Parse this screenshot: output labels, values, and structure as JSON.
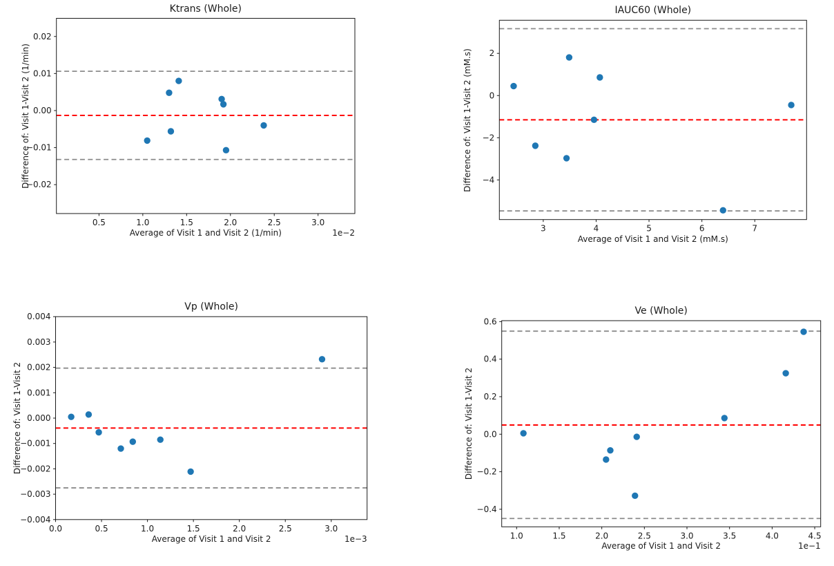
{
  "figure": {
    "background": "#ffffff"
  },
  "chart_data": [
    {
      "id": "ktrans",
      "type": "scatter",
      "title": "Ktrans (Whole)",
      "xlabel": "Average of Visit 1 and Visit 2 (1/min)",
      "ylabel": "Difference of: Visit 1-Visit 2 (1/min)",
      "x_offset_text": "1e−2",
      "x_display_scale": "1e-2",
      "xlim": [
        0.014,
        3.42
      ],
      "ylim": [
        -0.0278,
        0.0249
      ],
      "xticks": [
        0.5,
        1.0,
        1.5,
        2.0,
        2.5,
        3.0
      ],
      "xtick_labels": [
        "0.5",
        "1.0",
        "1.5",
        "2.0",
        "2.5",
        "3.0"
      ],
      "yticks": [
        0.02,
        0.01,
        0.0,
        -0.01,
        -0.02
      ],
      "ytick_labels": [
        "0.02",
        "0.01",
        "0.00",
        "−0.01",
        "−0.02"
      ],
      "points": [
        [
          1.05,
          -0.0081
        ],
        [
          1.3,
          0.0048
        ],
        [
          1.32,
          -0.0056
        ],
        [
          1.41,
          0.008
        ],
        [
          1.9,
          0.0031
        ],
        [
          1.92,
          0.0017
        ],
        [
          1.95,
          -0.0107
        ],
        [
          2.38,
          -0.004
        ]
      ],
      "mean_diff": -0.0013,
      "upper_loa": 0.0106,
      "lower_loa": -0.0132,
      "grid": false,
      "legend": "none",
      "colors": {
        "marker": "#1f77b4",
        "mean_line": "#ff0000",
        "loa_line": "#8c8c8c"
      }
    },
    {
      "id": "iauc60",
      "type": "scatter",
      "title": "IAUC60 (Whole)",
      "xlabel": "Average of Visit 1 and Visit 2 (mM.s)",
      "ylabel": "Difference of: Visit 1-Visit 2 (mM.s)",
      "x_offset_text": "",
      "x_display_scale": "1",
      "xlim": [
        2.17,
        7.98
      ],
      "ylim": [
        -5.88,
        3.57
      ],
      "xticks": [
        3,
        4,
        5,
        6,
        7
      ],
      "xtick_labels": [
        "3",
        "4",
        "5",
        "6",
        "7"
      ],
      "yticks": [
        2,
        0,
        -2,
        -4
      ],
      "ytick_labels": [
        "2",
        "0",
        "−2",
        "−4"
      ],
      "points": [
        [
          2.44,
          0.45
        ],
        [
          2.85,
          -2.38
        ],
        [
          3.49,
          1.81
        ],
        [
          3.44,
          -2.97
        ],
        [
          3.96,
          -1.15
        ],
        [
          4.07,
          0.86
        ],
        [
          6.4,
          -5.44
        ],
        [
          7.69,
          -0.45
        ]
      ],
      "mean_diff": -1.15,
      "upper_loa": 3.17,
      "lower_loa": -5.47,
      "grid": false,
      "legend": "none",
      "colors": {
        "marker": "#1f77b4",
        "mean_line": "#ff0000",
        "loa_line": "#8c8c8c"
      }
    },
    {
      "id": "vp",
      "type": "scatter",
      "title": "Vp (Whole)",
      "xlabel": "Average of Visit 1 and Visit 2",
      "ylabel": "Difference of: Visit 1-Visit 2",
      "x_offset_text": "1e−3",
      "x_display_scale": "1e-3",
      "xlim": [
        0.0,
        3.39
      ],
      "ylim": [
        -0.004,
        0.004
      ],
      "xticks": [
        0.0,
        0.5,
        1.0,
        1.5,
        2.0,
        2.5,
        3.0
      ],
      "xtick_labels": [
        "0.0",
        "0.5",
        "1.0",
        "1.5",
        "2.0",
        "2.5",
        "3.0"
      ],
      "yticks": [
        0.004,
        0.003,
        0.002,
        0.001,
        0.0,
        -0.001,
        -0.002,
        -0.003,
        -0.004
      ],
      "ytick_labels": [
        "0.004",
        "0.003",
        "0.002",
        "0.001",
        "0.000",
        "−0.001",
        "−0.002",
        "−0.003",
        "−0.004"
      ],
      "points": [
        [
          0.17,
          5e-05
        ],
        [
          0.36,
          0.00014
        ],
        [
          0.47,
          -0.00056
        ],
        [
          0.71,
          -0.0012
        ],
        [
          0.84,
          -0.00093
        ],
        [
          1.14,
          -0.00085
        ],
        [
          1.47,
          -0.00211
        ],
        [
          2.9,
          0.00232
        ]
      ],
      "mean_diff": -0.00039,
      "upper_loa": 0.00197,
      "lower_loa": -0.00275,
      "grid": false,
      "legend": "none",
      "colors": {
        "marker": "#1f77b4",
        "mean_line": "#ff0000",
        "loa_line": "#8c8c8c"
      }
    },
    {
      "id": "ve",
      "type": "scatter",
      "title": "Ve (Whole)",
      "xlabel": "Average of Visit 1 and Visit 2",
      "ylabel": "Difference of: Visit 1-Visit 2",
      "x_offset_text": "1e−1",
      "x_display_scale": "1e-1",
      "xlim": [
        0.825,
        4.57
      ],
      "ylim": [
        -0.4935,
        0.605
      ],
      "xticks": [
        1.0,
        1.5,
        2.0,
        2.5,
        3.0,
        3.5,
        4.0,
        4.5
      ],
      "xtick_labels": [
        "1.0",
        "1.5",
        "2.0",
        "2.5",
        "3.0",
        "3.5",
        "4.0",
        "4.5"
      ],
      "yticks": [
        0.6,
        0.4,
        0.2,
        0.0,
        -0.2,
        -0.4
      ],
      "ytick_labels": [
        "0.6",
        "0.4",
        "0.2",
        "0.0",
        "−0.2",
        "−0.4"
      ],
      "points": [
        [
          1.08,
          0.005
        ],
        [
          2.05,
          -0.135
        ],
        [
          2.1,
          -0.086
        ],
        [
          2.41,
          -0.014
        ],
        [
          2.39,
          -0.328
        ],
        [
          3.44,
          0.086
        ],
        [
          4.16,
          0.325
        ],
        [
          4.37,
          0.546
        ]
      ],
      "mean_diff": 0.049,
      "upper_loa": 0.549,
      "lower_loa": -0.449,
      "grid": false,
      "legend": "none",
      "colors": {
        "marker": "#1f77b4",
        "mean_line": "#ff0000",
        "loa_line": "#8c8c8c"
      }
    }
  ]
}
